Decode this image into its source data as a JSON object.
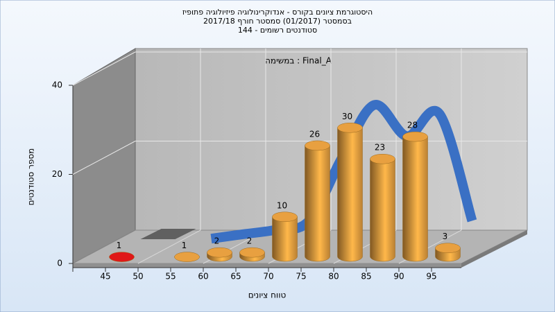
{
  "chart_data": {
    "type": "bar",
    "title": [
      "היסטוגרמת ציונים בקורס - אנדוקרינולוגיה פיזיולוגיה פתופיז",
      "בסמסטר  (01/2017)  סמסטר חורף 2017/18",
      "סטודנטים רשומים - 144"
    ],
    "annotation": "במשימה : Final_A",
    "x_label": "טווח ציונים",
    "y_label": "מספר סטודנטים",
    "categories": [
      "45",
      "50",
      "55",
      "60",
      "65",
      "70",
      "75",
      "80",
      "85",
      "90",
      "95"
    ],
    "values": [
      1,
      0,
      1,
      2,
      2,
      10,
      26,
      30,
      23,
      28,
      3
    ],
    "colors": [
      "#e01818",
      "#606060",
      "#e8a040",
      "#e8a040",
      "#e8a040",
      "#e8a040",
      "#e8a040",
      "#e8a040",
      "#e8a040",
      "#e8a040",
      "#e8a040"
    ],
    "trend": {
      "color": "#3a70c4",
      "values": [
        null,
        null,
        2,
        3,
        4,
        6,
        20,
        32,
        25,
        30,
        6
      ]
    },
    "ylim": [
      0,
      40
    ],
    "yticks": [
      0,
      20,
      40
    ],
    "grid": true
  }
}
